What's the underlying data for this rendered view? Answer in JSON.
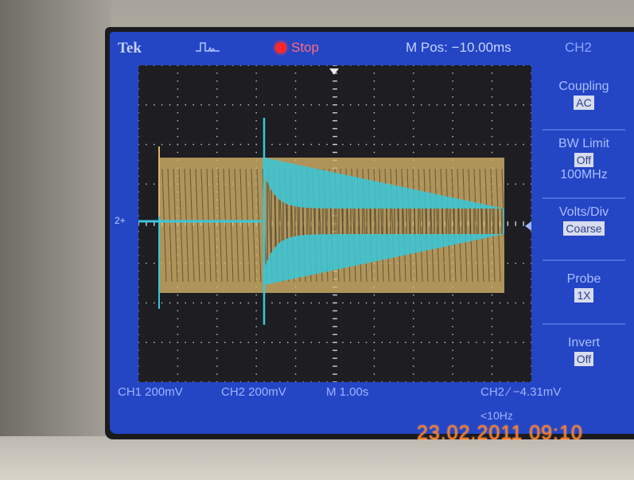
{
  "header": {
    "brand": "Tek",
    "run_state": "Stop",
    "m_pos": "M Pos: −10.00ms",
    "channel": "CH2"
  },
  "menu": {
    "coupling": {
      "label": "Coupling",
      "value": "AC"
    },
    "bw_limit": {
      "label": "BW Limit",
      "value": "Off",
      "sub": "100MHz"
    },
    "volts_div": {
      "label": "Volts/Div",
      "value": "Coarse"
    },
    "probe": {
      "label": "Probe",
      "value": "1X"
    },
    "invert": {
      "label": "Invert",
      "value": "Off"
    }
  },
  "footer": {
    "ch1_scale": "CH1  200mV",
    "ch2_scale": "CH2  200mV",
    "timebase": "M 1.00s",
    "trigger": "CH2 ∕  −4.31mV",
    "freq": "<10Hz"
  },
  "marker": "2+",
  "timestamp": "23.02.2011  09:10",
  "colors": {
    "screen": "#2445c4",
    "ch1_trace": "#d9b66a",
    "ch2_trace": "#39c7d9",
    "grid": "#c8c8d8"
  },
  "icons": [
    "trigger-icon",
    "stop-icon",
    "trigger-arrow-icon",
    "ch2-ground-marker-icon"
  ]
}
